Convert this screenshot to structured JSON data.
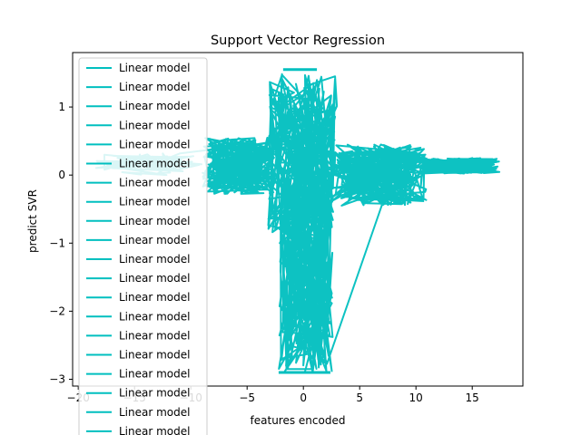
{
  "chart_data": {
    "type": "line",
    "title": "Support Vector Regression",
    "xlabel": "features encoded",
    "ylabel": "predict SVR",
    "xlim": [
      -20.5,
      19.5
    ],
    "ylim": [
      -3.1,
      1.8
    ],
    "x_ticks": [
      -20,
      -15,
      -10,
      -5,
      0,
      5,
      10,
      15
    ],
    "x_tick_labels": [
      "−20",
      "−15",
      "−10",
      "−5",
      "0",
      "5",
      "10",
      "15"
    ],
    "y_ticks": [
      -3,
      -2,
      -1,
      0,
      1
    ],
    "y_tick_labels": [
      "−3",
      "−2",
      "−1",
      "0",
      "1"
    ],
    "grid": false,
    "legend_position": "upper-left",
    "color": "#00bfbf",
    "series": [
      {
        "name": "Linear model",
        "note": "dense zig-zag of SVR predictions",
        "x": [
          -18.5,
          -12,
          -9,
          -6,
          -4,
          -2.5,
          -1.8,
          -1.5,
          -1.0,
          -0.5,
          0,
          0.5,
          1.0,
          1.5,
          2.0,
          2.5,
          4,
          6,
          8,
          10,
          12,
          14,
          16,
          17.5
        ],
        "y": [
          0.2,
          0.22,
          0.25,
          0.3,
          0.5,
          1.0,
          1.5,
          1.55,
          1.55,
          1.55,
          1.5,
          1.3,
          -2.9,
          -2.9,
          -2.9,
          -2.9,
          -0.3,
          0.4,
          0.3,
          0.25,
          0.2,
          0.18,
          0.17,
          0.18
        ]
      }
    ],
    "legend_entries": [
      "Linear model",
      "Linear model",
      "Linear model",
      "Linear model",
      "Linear model",
      "Linear model",
      "Linear model",
      "Linear model",
      "Linear model",
      "Linear model",
      "Linear model",
      "Linear model",
      "Linear model",
      "Linear model",
      "Linear model",
      "Linear model",
      "Linear model",
      "Linear model",
      "Linear model",
      "Linear model"
    ]
  }
}
